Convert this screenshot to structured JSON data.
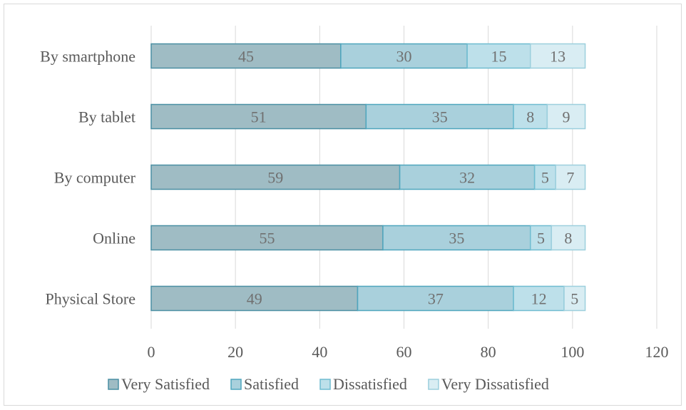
{
  "chart_data": {
    "type": "bar",
    "orientation": "horizontal",
    "stacked": true,
    "categories": [
      "By smartphone",
      "By tablet",
      "By computer",
      "Online",
      "Physical Store"
    ],
    "series": [
      {
        "name": "Very Satisfied",
        "color": "#9fbcc4",
        "stroke": "#4a8fa3",
        "values": [
          45,
          51,
          59,
          55,
          49
        ]
      },
      {
        "name": "Satisfied",
        "color": "#a9d0dc",
        "stroke": "#4fa6be",
        "values": [
          30,
          35,
          32,
          35,
          37
        ]
      },
      {
        "name": "Dissatisfied",
        "color": "#bde0ea",
        "stroke": "#6fbcd0",
        "values": [
          15,
          8,
          5,
          5,
          12
        ]
      },
      {
        "name": "Very Dissatisfied",
        "color": "#d9edf3",
        "stroke": "#9ccfdd",
        "values": [
          13,
          9,
          7,
          8,
          5
        ]
      }
    ],
    "xlim": [
      0,
      120
    ],
    "xticks": [
      0,
      20,
      40,
      60,
      80,
      100,
      120
    ],
    "grid": "vertical",
    "legend_position": "bottom",
    "title": "",
    "xlabel": "",
    "ylabel": ""
  }
}
